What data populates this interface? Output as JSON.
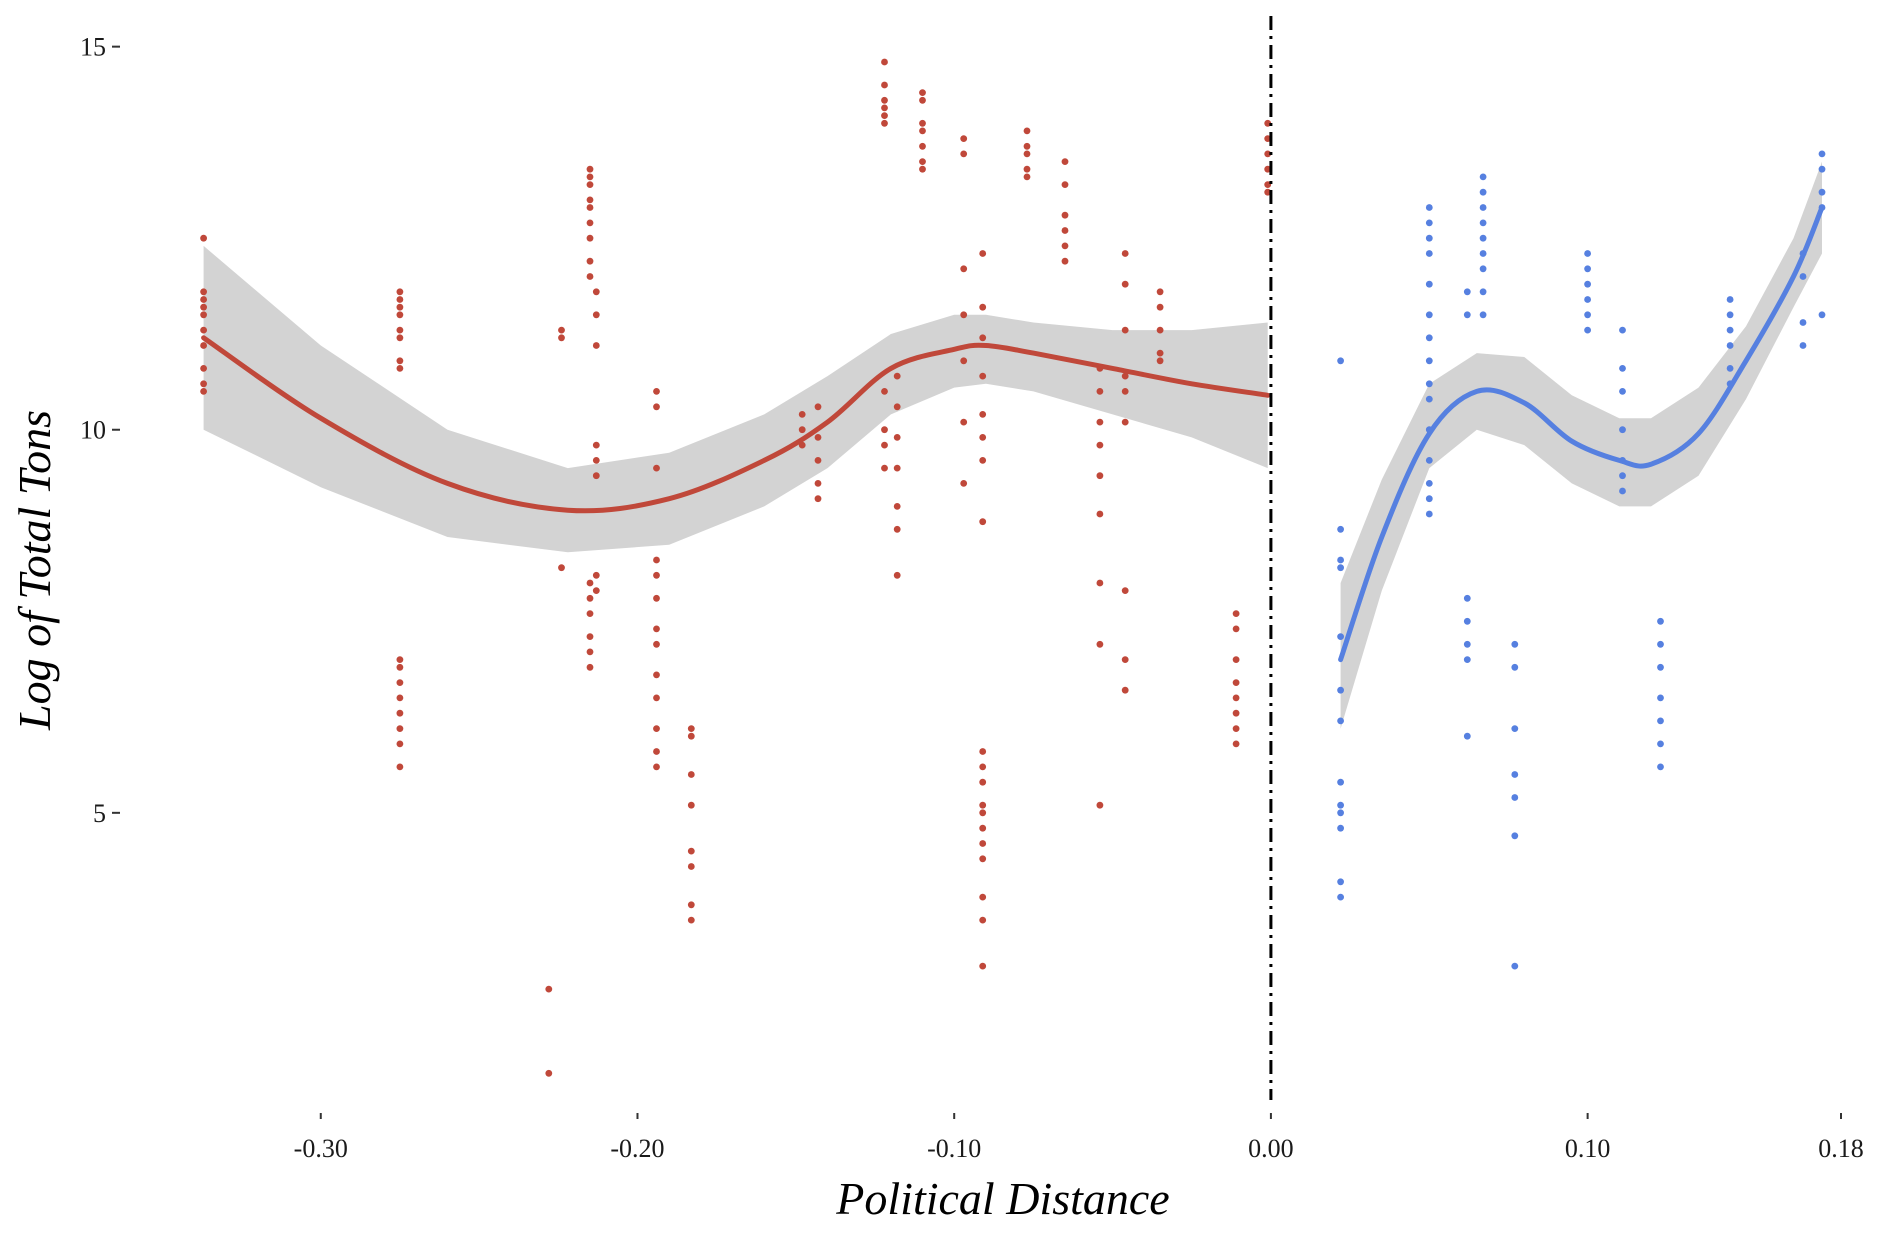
{
  "chart_data": {
    "type": "scatter",
    "title": "",
    "xlabel": "Political Distance",
    "ylabel": "Log of Total Tons",
    "xlim": [
      -0.3375,
      0.18
    ],
    "ylim": [
      1.5,
      15.4
    ],
    "x_ticks": [
      {
        "value": -0.3,
        "label": "-0.30"
      },
      {
        "value": -0.2,
        "label": "-0.20"
      },
      {
        "value": -0.1,
        "label": "-0.10"
      },
      {
        "value": 0.0,
        "label": "0.00"
      },
      {
        "value": 0.1,
        "label": "0.10"
      },
      {
        "value": 0.18,
        "label": "0.18"
      }
    ],
    "y_ticks": [
      {
        "value": 5,
        "label": "5"
      },
      {
        "value": 10,
        "label": "10"
      },
      {
        "value": 15,
        "label": "15"
      }
    ],
    "cutoff_line": {
      "x": 0.0,
      "style": "dash-dot",
      "color": "#000000"
    },
    "grid": false,
    "legend": "none",
    "series": [
      {
        "color": "#c0483a",
        "points": [
          [
            -0.337,
            12.5
          ],
          [
            -0.337,
            11.8
          ],
          [
            -0.337,
            11.7
          ],
          [
            -0.337,
            11.6
          ],
          [
            -0.337,
            11.5
          ],
          [
            -0.337,
            11.3
          ],
          [
            -0.337,
            11.1
          ],
          [
            -0.337,
            10.8
          ],
          [
            -0.337,
            10.6
          ],
          [
            -0.337,
            10.5
          ],
          [
            -0.275,
            11.8
          ],
          [
            -0.275,
            11.7
          ],
          [
            -0.275,
            11.6
          ],
          [
            -0.275,
            11.5
          ],
          [
            -0.275,
            11.3
          ],
          [
            -0.275,
            11.2
          ],
          [
            -0.275,
            10.9
          ],
          [
            -0.275,
            10.8
          ],
          [
            -0.275,
            7.0
          ],
          [
            -0.275,
            6.9
          ],
          [
            -0.275,
            6.7
          ],
          [
            -0.275,
            6.5
          ],
          [
            -0.275,
            6.3
          ],
          [
            -0.275,
            6.1
          ],
          [
            -0.275,
            5.9
          ],
          [
            -0.275,
            5.6
          ],
          [
            -0.228,
            2.7
          ],
          [
            -0.228,
            1.6
          ],
          [
            -0.224,
            11.3
          ],
          [
            -0.224,
            11.2
          ],
          [
            -0.224,
            8.2
          ],
          [
            -0.215,
            13.4
          ],
          [
            -0.215,
            13.3
          ],
          [
            -0.215,
            13.2
          ],
          [
            -0.215,
            13.0
          ],
          [
            -0.215,
            12.9
          ],
          [
            -0.215,
            12.7
          ],
          [
            -0.215,
            12.5
          ],
          [
            -0.215,
            12.2
          ],
          [
            -0.215,
            12.0
          ],
          [
            -0.215,
            8.0
          ],
          [
            -0.215,
            7.8
          ],
          [
            -0.215,
            7.6
          ],
          [
            -0.215,
            7.3
          ],
          [
            -0.215,
            7.1
          ],
          [
            -0.215,
            6.9
          ],
          [
            -0.213,
            11.8
          ],
          [
            -0.213,
            11.5
          ],
          [
            -0.213,
            11.1
          ],
          [
            -0.213,
            9.8
          ],
          [
            -0.213,
            9.6
          ],
          [
            -0.213,
            9.4
          ],
          [
            -0.213,
            8.1
          ],
          [
            -0.213,
            7.9
          ],
          [
            -0.194,
            10.5
          ],
          [
            -0.194,
            10.3
          ],
          [
            -0.194,
            9.5
          ],
          [
            -0.194,
            8.3
          ],
          [
            -0.194,
            8.1
          ],
          [
            -0.194,
            7.8
          ],
          [
            -0.194,
            7.4
          ],
          [
            -0.194,
            7.2
          ],
          [
            -0.194,
            6.8
          ],
          [
            -0.194,
            6.5
          ],
          [
            -0.194,
            6.1
          ],
          [
            -0.194,
            5.8
          ],
          [
            -0.194,
            5.6
          ],
          [
            -0.183,
            6.1
          ],
          [
            -0.183,
            6.0
          ],
          [
            -0.183,
            5.5
          ],
          [
            -0.183,
            5.1
          ],
          [
            -0.183,
            4.5
          ],
          [
            -0.183,
            4.3
          ],
          [
            -0.183,
            3.8
          ],
          [
            -0.183,
            3.6
          ],
          [
            -0.148,
            10.2
          ],
          [
            -0.148,
            10.0
          ],
          [
            -0.148,
            9.8
          ],
          [
            -0.143,
            10.3
          ],
          [
            -0.143,
            9.9
          ],
          [
            -0.143,
            9.6
          ],
          [
            -0.143,
            9.3
          ],
          [
            -0.143,
            9.1
          ],
          [
            -0.122,
            14.8
          ],
          [
            -0.122,
            14.5
          ],
          [
            -0.122,
            14.3
          ],
          [
            -0.122,
            14.2
          ],
          [
            -0.122,
            14.1
          ],
          [
            -0.122,
            14.0
          ],
          [
            -0.122,
            10.5
          ],
          [
            -0.122,
            10.0
          ],
          [
            -0.122,
            9.8
          ],
          [
            -0.122,
            9.5
          ],
          [
            -0.118,
            10.7
          ],
          [
            -0.118,
            10.3
          ],
          [
            -0.118,
            9.9
          ],
          [
            -0.118,
            9.5
          ],
          [
            -0.118,
            9.0
          ],
          [
            -0.118,
            8.7
          ],
          [
            -0.118,
            8.1
          ],
          [
            -0.11,
            14.4
          ],
          [
            -0.11,
            14.3
          ],
          [
            -0.11,
            14.0
          ],
          [
            -0.11,
            13.9
          ],
          [
            -0.11,
            13.7
          ],
          [
            -0.11,
            13.5
          ],
          [
            -0.11,
            13.4
          ],
          [
            -0.097,
            13.8
          ],
          [
            -0.097,
            13.6
          ],
          [
            -0.097,
            12.1
          ],
          [
            -0.097,
            11.5
          ],
          [
            -0.097,
            10.9
          ],
          [
            -0.097,
            10.1
          ],
          [
            -0.097,
            9.3
          ],
          [
            -0.091,
            12.3
          ],
          [
            -0.091,
            11.6
          ],
          [
            -0.091,
            11.2
          ],
          [
            -0.091,
            10.7
          ],
          [
            -0.091,
            10.2
          ],
          [
            -0.091,
            9.9
          ],
          [
            -0.091,
            9.6
          ],
          [
            -0.091,
            8.8
          ],
          [
            -0.091,
            5.8
          ],
          [
            -0.091,
            5.6
          ],
          [
            -0.091,
            5.4
          ],
          [
            -0.091,
            5.1
          ],
          [
            -0.091,
            5.0
          ],
          [
            -0.091,
            4.8
          ],
          [
            -0.091,
            4.6
          ],
          [
            -0.091,
            4.4
          ],
          [
            -0.091,
            3.9
          ],
          [
            -0.091,
            3.6
          ],
          [
            -0.091,
            3.0
          ],
          [
            -0.077,
            13.9
          ],
          [
            -0.077,
            13.7
          ],
          [
            -0.077,
            13.6
          ],
          [
            -0.077,
            13.4
          ],
          [
            -0.077,
            13.3
          ],
          [
            -0.065,
            13.5
          ],
          [
            -0.065,
            13.2
          ],
          [
            -0.065,
            12.8
          ],
          [
            -0.065,
            12.6
          ],
          [
            -0.065,
            12.4
          ],
          [
            -0.065,
            12.2
          ],
          [
            -0.054,
            10.8
          ],
          [
            -0.054,
            10.5
          ],
          [
            -0.054,
            10.1
          ],
          [
            -0.054,
            9.8
          ],
          [
            -0.054,
            9.4
          ],
          [
            -0.054,
            8.9
          ],
          [
            -0.054,
            8.0
          ],
          [
            -0.054,
            7.2
          ],
          [
            -0.054,
            5.1
          ],
          [
            -0.046,
            12.3
          ],
          [
            -0.046,
            11.9
          ],
          [
            -0.046,
            11.3
          ],
          [
            -0.046,
            10.7
          ],
          [
            -0.046,
            10.5
          ],
          [
            -0.046,
            10.1
          ],
          [
            -0.046,
            7.9
          ],
          [
            -0.046,
            7.0
          ],
          [
            -0.046,
            6.6
          ],
          [
            -0.035,
            11.8
          ],
          [
            -0.035,
            11.6
          ],
          [
            -0.035,
            11.3
          ],
          [
            -0.035,
            11.0
          ],
          [
            -0.035,
            10.9
          ],
          [
            -0.011,
            7.6
          ],
          [
            -0.011,
            7.4
          ],
          [
            -0.011,
            7.0
          ],
          [
            -0.011,
            6.7
          ],
          [
            -0.011,
            6.5
          ],
          [
            -0.011,
            6.3
          ],
          [
            -0.011,
            6.1
          ],
          [
            -0.011,
            5.9
          ],
          [
            -0.001,
            14.0
          ],
          [
            -0.001,
            13.8
          ],
          [
            -0.001,
            13.6
          ],
          [
            -0.001,
            13.4
          ],
          [
            -0.001,
            13.2
          ],
          [
            -0.001,
            13.1
          ]
        ]
      },
      {
        "color": "#5680e0",
        "points": [
          [
            0.022,
            10.9
          ],
          [
            0.022,
            8.7
          ],
          [
            0.022,
            8.3
          ],
          [
            0.022,
            8.2
          ],
          [
            0.022,
            7.3
          ],
          [
            0.022,
            6.6
          ],
          [
            0.022,
            6.2
          ],
          [
            0.022,
            5.4
          ],
          [
            0.022,
            5.1
          ],
          [
            0.022,
            5.0
          ],
          [
            0.022,
            4.8
          ],
          [
            0.022,
            4.1
          ],
          [
            0.022,
            3.9
          ],
          [
            0.05,
            12.9
          ],
          [
            0.05,
            12.7
          ],
          [
            0.05,
            12.5
          ],
          [
            0.05,
            12.3
          ],
          [
            0.05,
            11.9
          ],
          [
            0.05,
            11.5
          ],
          [
            0.05,
            11.2
          ],
          [
            0.05,
            10.9
          ],
          [
            0.05,
            10.6
          ],
          [
            0.05,
            10.4
          ],
          [
            0.05,
            10.0
          ],
          [
            0.05,
            9.6
          ],
          [
            0.05,
            9.3
          ],
          [
            0.05,
            9.1
          ],
          [
            0.05,
            8.9
          ],
          [
            0.062,
            11.8
          ],
          [
            0.062,
            11.5
          ],
          [
            0.062,
            7.8
          ],
          [
            0.062,
            7.5
          ],
          [
            0.062,
            7.2
          ],
          [
            0.062,
            7.0
          ],
          [
            0.062,
            6.0
          ],
          [
            0.067,
            13.3
          ],
          [
            0.067,
            13.1
          ],
          [
            0.067,
            12.9
          ],
          [
            0.067,
            12.7
          ],
          [
            0.067,
            12.5
          ],
          [
            0.067,
            12.3
          ],
          [
            0.067,
            12.1
          ],
          [
            0.067,
            11.8
          ],
          [
            0.067,
            11.5
          ],
          [
            0.077,
            7.2
          ],
          [
            0.077,
            6.9
          ],
          [
            0.077,
            6.1
          ],
          [
            0.077,
            5.5
          ],
          [
            0.077,
            5.2
          ],
          [
            0.077,
            4.7
          ],
          [
            0.077,
            3.0
          ],
          [
            0.1,
            12.3
          ],
          [
            0.1,
            12.1
          ],
          [
            0.1,
            11.9
          ],
          [
            0.1,
            11.7
          ],
          [
            0.1,
            11.5
          ],
          [
            0.1,
            11.3
          ],
          [
            0.111,
            11.3
          ],
          [
            0.111,
            10.8
          ],
          [
            0.111,
            10.5
          ],
          [
            0.111,
            10.0
          ],
          [
            0.111,
            9.6
          ],
          [
            0.111,
            9.4
          ],
          [
            0.111,
            9.2
          ],
          [
            0.123,
            7.5
          ],
          [
            0.123,
            7.2
          ],
          [
            0.123,
            6.9
          ],
          [
            0.123,
            6.5
          ],
          [
            0.123,
            6.2
          ],
          [
            0.123,
            5.9
          ],
          [
            0.123,
            5.6
          ],
          [
            0.145,
            11.7
          ],
          [
            0.145,
            11.5
          ],
          [
            0.145,
            11.3
          ],
          [
            0.145,
            11.1
          ],
          [
            0.145,
            10.8
          ],
          [
            0.145,
            10.6
          ],
          [
            0.168,
            12.3
          ],
          [
            0.168,
            12.0
          ],
          [
            0.168,
            11.4
          ],
          [
            0.168,
            11.1
          ],
          [
            0.174,
            13.6
          ],
          [
            0.174,
            13.4
          ],
          [
            0.174,
            13.1
          ],
          [
            0.174,
            12.9
          ],
          [
            0.174,
            11.5
          ]
        ]
      }
    ],
    "fits": [
      {
        "color": "#c0483a",
        "band_color": "#d3d3d3",
        "x": [
          -0.337,
          -0.3,
          -0.26,
          -0.222,
          -0.19,
          -0.16,
          -0.14,
          -0.12,
          -0.1,
          -0.09,
          -0.075,
          -0.05,
          -0.025,
          -0.001
        ],
        "y": [
          11.2,
          10.15,
          9.3,
          8.95,
          9.1,
          9.6,
          10.1,
          10.8,
          11.05,
          11.1,
          11.0,
          10.8,
          10.6,
          10.45
        ],
        "lower": [
          10.0,
          9.25,
          8.6,
          8.4,
          8.5,
          9.0,
          9.5,
          10.2,
          10.55,
          10.6,
          10.5,
          10.2,
          9.9,
          9.5
        ],
        "upper": [
          12.4,
          11.1,
          10.0,
          9.5,
          9.7,
          10.2,
          10.7,
          11.25,
          11.5,
          11.5,
          11.4,
          11.3,
          11.3,
          11.4
        ]
      },
      {
        "color": "#5680e0",
        "band_color": "#d3d3d3",
        "x": [
          0.022,
          0.035,
          0.05,
          0.065,
          0.08,
          0.095,
          0.11,
          0.12,
          0.135,
          0.15,
          0.165,
          0.174
        ],
        "y": [
          7.0,
          8.6,
          9.95,
          10.5,
          10.35,
          9.85,
          9.6,
          9.55,
          9.95,
          10.9,
          12.0,
          12.9
        ],
        "lower": [
          6.1,
          7.9,
          9.5,
          10.0,
          9.8,
          9.3,
          9.0,
          9.0,
          9.4,
          10.4,
          11.6,
          12.3
        ],
        "upper": [
          8.0,
          9.35,
          10.6,
          11.0,
          10.95,
          10.45,
          10.15,
          10.15,
          10.55,
          11.35,
          12.5,
          13.5
        ]
      }
    ]
  }
}
